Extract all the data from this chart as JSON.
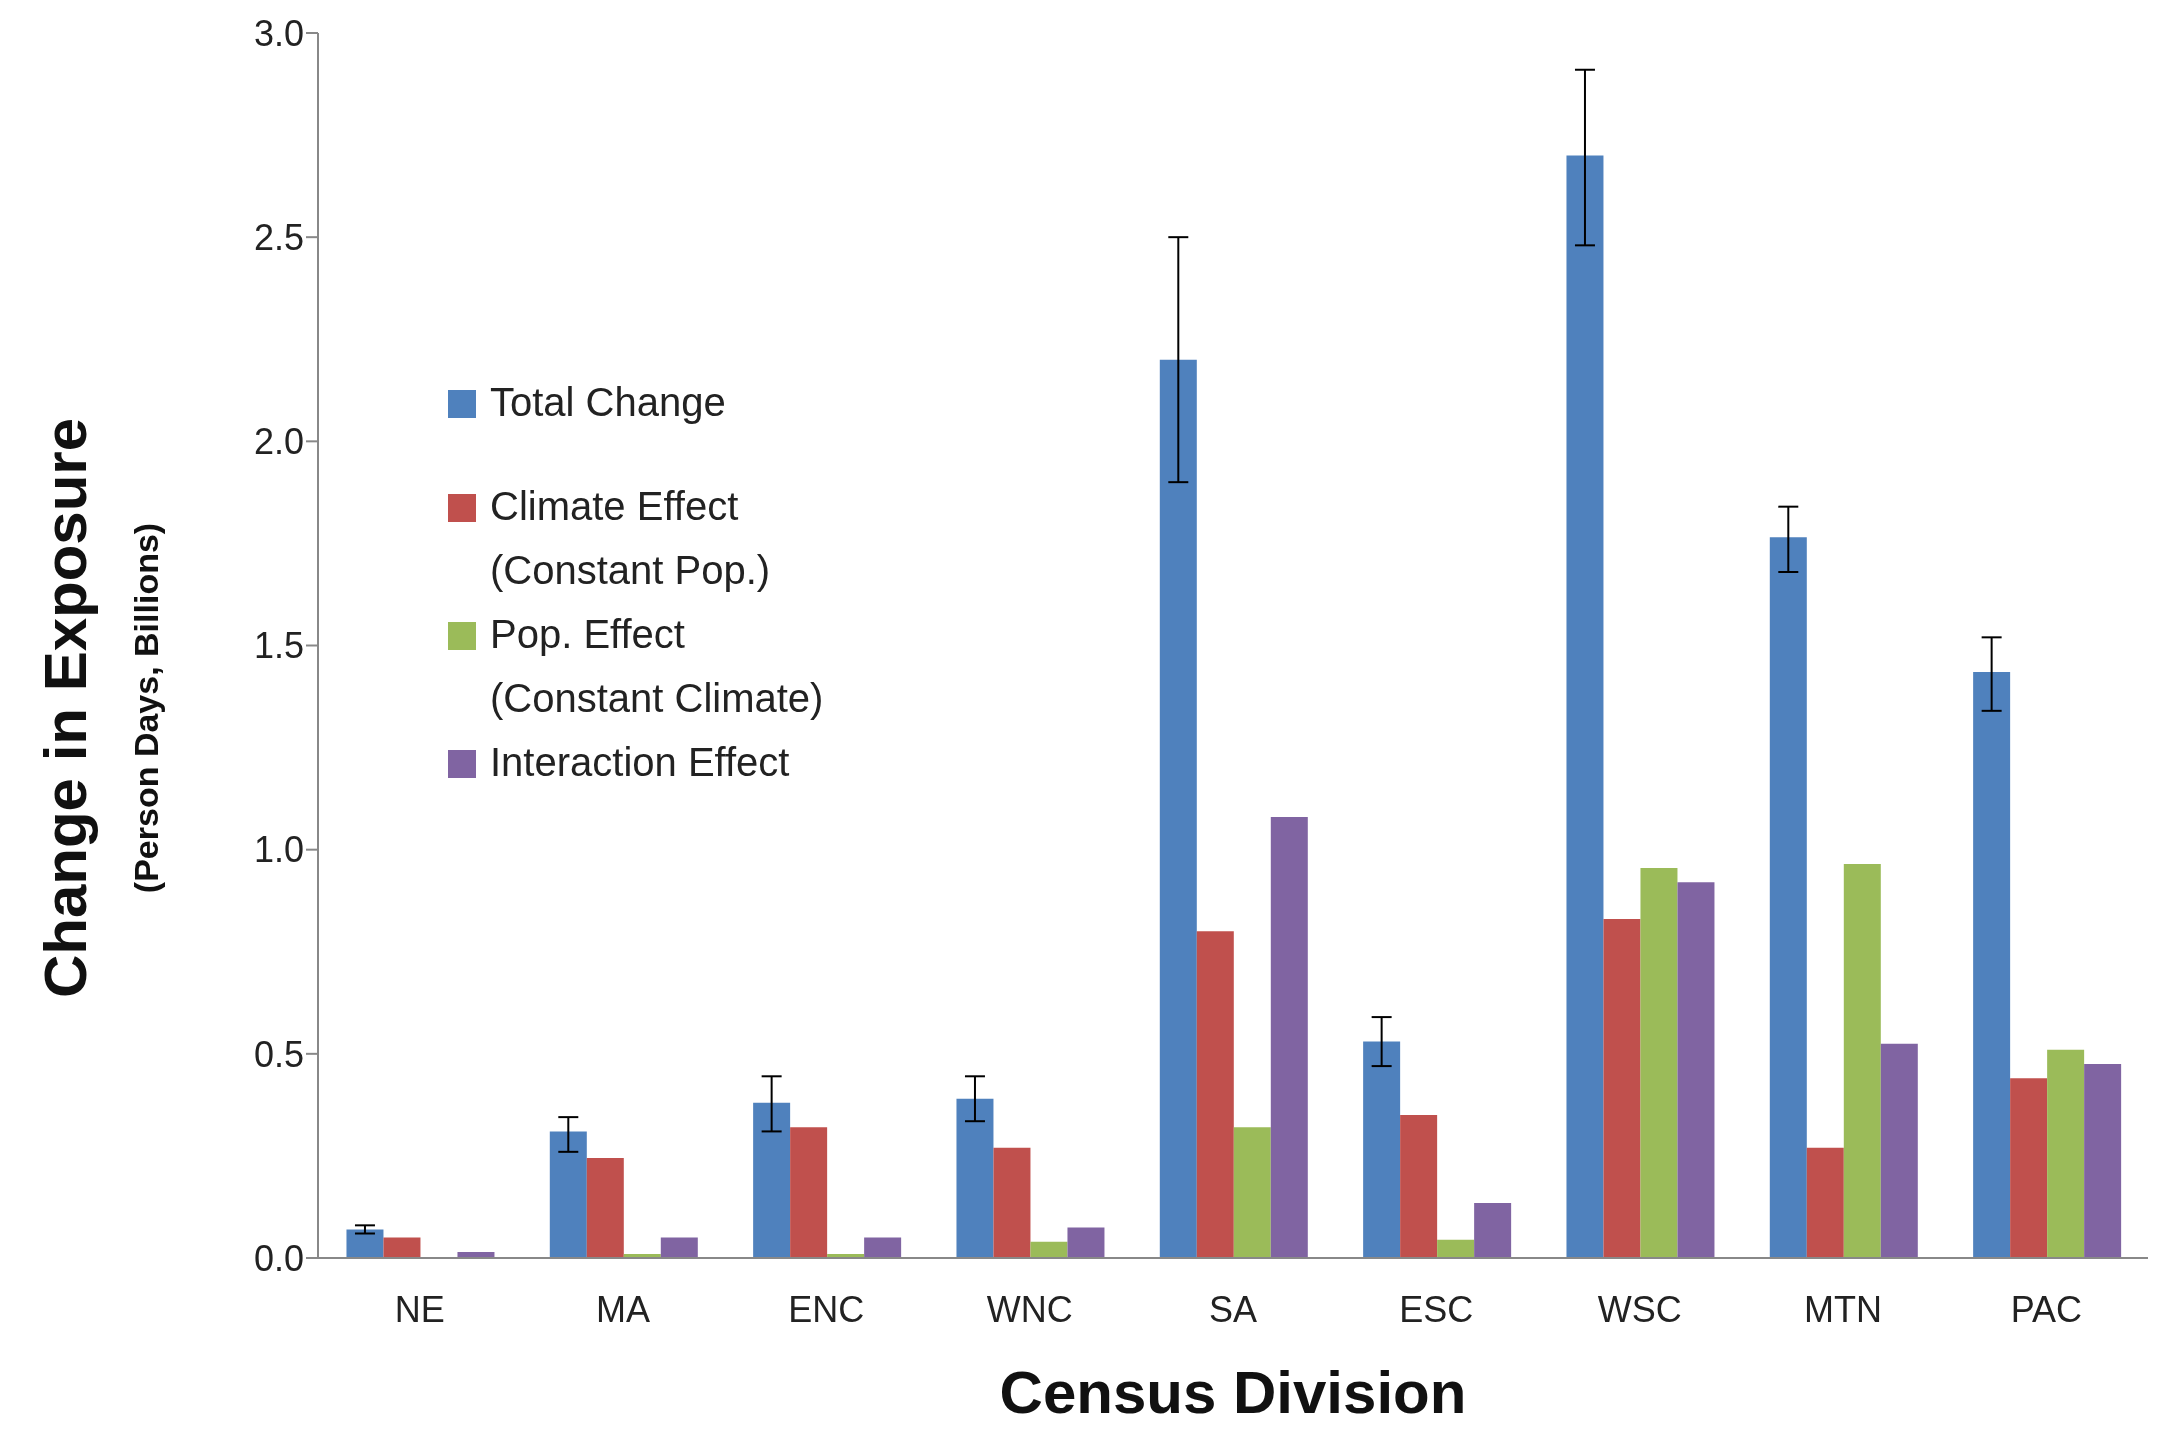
{
  "chart_data": {
    "type": "bar",
    "xlabel": "Census Division",
    "ylabel": "Change in Exposure\n(Person Days, Billions)",
    "categories": [
      "NE",
      "MA",
      "ENC",
      "WNC",
      "SA",
      "ESC",
      "WSC",
      "MTN",
      "PAC"
    ],
    "series": [
      {
        "name": "Total Change",
        "color": "#4f81bd",
        "values": [
          0.07,
          0.31,
          0.38,
          0.39,
          2.2,
          0.53,
          2.7,
          1.765,
          1.435
        ],
        "errors": [
          [
            0.06,
            0.08
          ],
          [
            0.26,
            0.345
          ],
          [
            0.31,
            0.445
          ],
          [
            0.335,
            0.445
          ],
          [
            1.9,
            2.5
          ],
          [
            0.47,
            0.59
          ],
          [
            2.48,
            2.91
          ],
          [
            1.68,
            1.84
          ],
          [
            1.34,
            1.52
          ]
        ]
      },
      {
        "name": "Climate Effect\n(Constant Pop.)",
        "color": "#c0504d",
        "values": [
          0.05,
          0.245,
          0.32,
          0.27,
          0.8,
          0.35,
          0.83,
          0.27,
          0.44
        ]
      },
      {
        "name": "Pop. Effect\n(Constant Climate)",
        "color": "#9bbb59",
        "values": [
          0.002,
          0.01,
          0.01,
          0.04,
          0.32,
          0.045,
          0.955,
          0.965,
          0.51
        ]
      },
      {
        "name": "Interaction Effect",
        "color": "#8064a2",
        "values": [
          0.015,
          0.05,
          0.05,
          0.075,
          1.08,
          0.135,
          0.92,
          0.525,
          0.475
        ]
      }
    ],
    "ylim": [
      0,
      3
    ],
    "yticks": [
      {
        "value": 0,
        "label": "0.0"
      },
      {
        "value": 0.5,
        "label": "0.5"
      },
      {
        "value": 1,
        "label": "1.0"
      },
      {
        "value": 1.5,
        "label": "1.5"
      },
      {
        "value": 2,
        "label": "2.0"
      },
      {
        "value": 2.5,
        "label": "2.5"
      },
      {
        "value": 3,
        "label": "3.0"
      }
    ],
    "legend": "left",
    "grid": false
  }
}
